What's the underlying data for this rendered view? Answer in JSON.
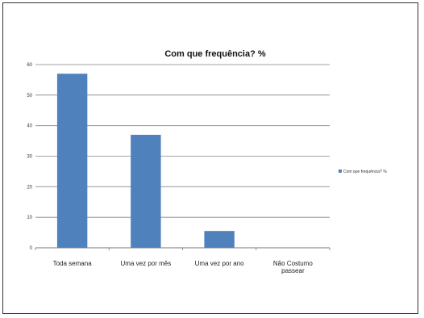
{
  "chart_data": {
    "type": "bar",
    "title": "Com que frequência? %",
    "categories": [
      "Toda semana",
      "Uma vez por mês",
      "Uma vez por ano",
      "Não Costumo passear"
    ],
    "series": [
      {
        "name": "Com que frequência? %",
        "values": [
          57,
          37,
          5.5,
          0
        ],
        "color": "#4F81BD"
      }
    ],
    "ylim": [
      0,
      60
    ],
    "yticks": [
      0,
      10,
      20,
      30,
      40,
      50,
      60
    ],
    "grid": true,
    "legend": "right"
  }
}
